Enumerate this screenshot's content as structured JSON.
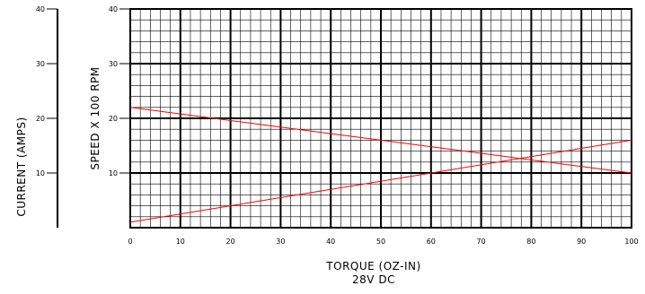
{
  "chart_data": {
    "type": "line",
    "xlabel": "TORQUE (OZ-IN)",
    "xlabel2": "28V DC",
    "ylabel_left": "CURRENT (AMPS)",
    "ylabel_right": "SPEED X 100 RPM",
    "xlim": [
      0,
      100
    ],
    "ylim": [
      0,
      40
    ],
    "grid": true,
    "x_ticks": [
      "0",
      "10",
      "20",
      "30",
      "40",
      "50",
      "60",
      "70",
      "80",
      "90",
      "100"
    ],
    "y_ticks_plot": [
      "40",
      "30",
      "20",
      "10"
    ],
    "y_ticks_current": [
      "40",
      "30",
      "20",
      "10"
    ],
    "series": [
      {
        "x": [
          0,
          100
        ],
        "y": [
          22,
          10
        ],
        "color": "#ff0000"
      },
      {
        "x": [
          0,
          100
        ],
        "y": [
          1,
          16
        ],
        "color": "#ff0000"
      }
    ]
  }
}
